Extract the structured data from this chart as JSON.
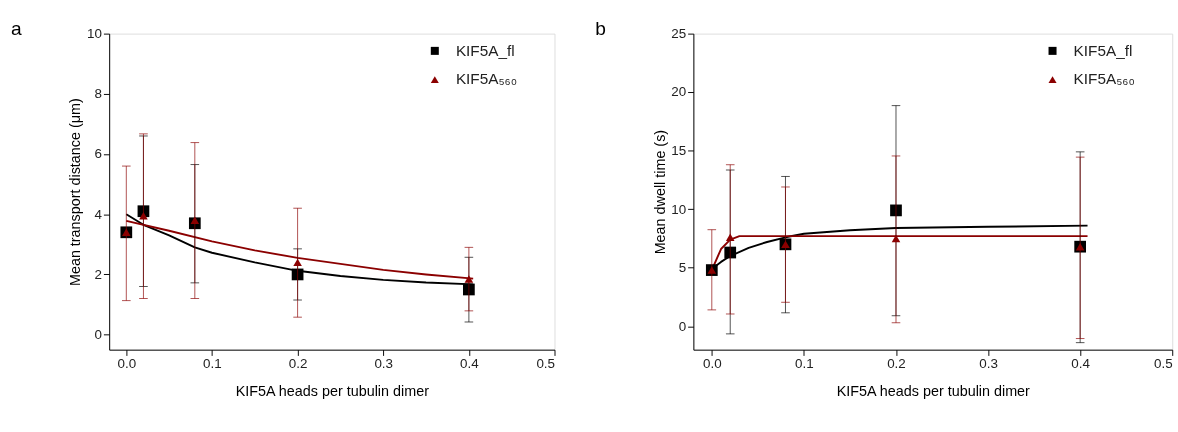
{
  "chart_data": [
    {
      "type": "scatter",
      "title": "a",
      "xlabel": "KIF5A heads per tubulin dimer",
      "ylabel": "Mean transport distance (μm)",
      "xlim": [
        -0.02,
        0.5
      ],
      "ylim": [
        -0.5,
        10
      ],
      "xticks": [
        {
          "value": 0,
          "label": "0.0"
        },
        0.1,
        0.2,
        0.3,
        0.4,
        0.5
      ],
      "yticks": [
        0,
        2,
        4,
        6,
        8,
        10
      ],
      "legend": "top right",
      "series": [
        {
          "type": "line",
          "color": "#000000",
          "marker": "none",
          "line_style": "solid",
          "x": [
            0,
            0.02,
            0.05,
            0.08,
            0.1,
            0.15,
            0.2,
            0.25,
            0.3,
            0.35,
            0.405
          ],
          "values": [
            4.0,
            3.65,
            3.3,
            2.9,
            2.72,
            2.4,
            2.12,
            1.95,
            1.82,
            1.73,
            1.67
          ]
        },
        {
          "type": "line",
          "color": "#8b0000",
          "marker": "none",
          "line_style": "solid",
          "x": [
            0,
            0.05,
            0.1,
            0.15,
            0.2,
            0.25,
            0.3,
            0.35,
            0.405
          ],
          "values": [
            3.78,
            3.45,
            3.1,
            2.8,
            2.55,
            2.35,
            2.15,
            2.0,
            1.86
          ]
        },
        {
          "name": "KIF5A_fl",
          "color": "#000000",
          "marker": "square",
          "x": [
            0,
            0.02,
            0.08,
            0.2,
            0.4
          ],
          "values": [
            3.4,
            4.1,
            3.7,
            2.0,
            1.5
          ],
          "errors": [
            null,
            [
              1.6,
              6.6
            ],
            [
              1.72,
              5.65
            ],
            [
              1.15,
              2.85
            ],
            [
              0.42,
              2.57
            ]
          ]
        },
        {
          "name": "KIF5A₅₆₀",
          "color": "#8b0000",
          "marker": "triangle",
          "x": [
            0,
            0.02,
            0.08,
            0.2,
            0.4
          ],
          "values": [
            3.4,
            3.95,
            3.8,
            2.4,
            1.85
          ],
          "errors": [
            [
              1.13,
              5.6
            ],
            [
              1.2,
              6.67
            ],
            [
              1.2,
              6.38
            ],
            [
              0.58,
              4.2
            ],
            [
              0.79,
              2.9
            ]
          ]
        }
      ]
    },
    {
      "type": "scatter",
      "title": "b",
      "xlabel": "KIF5A heads per tubulin dimer",
      "ylabel": "Mean dwell time (s)",
      "xlim": [
        -0.02,
        0.5
      ],
      "ylim": [
        -2,
        25
      ],
      "xticks": [
        {
          "value": 0,
          "label": "0.0"
        },
        0.1,
        0.2,
        0.3,
        0.4,
        0.5
      ],
      "yticks": [
        0,
        5,
        10,
        15,
        20,
        25
      ],
      "legend": "top right",
      "series": [
        {
          "type": "line",
          "color": "#000000",
          "marker": "none",
          "line_style": "solid",
          "x": [
            0,
            0.01,
            0.02,
            0.04,
            0.06,
            0.08,
            0.1,
            0.15,
            0.2,
            0.3,
            0.408
          ],
          "values": [
            4.9,
            5.5,
            6.0,
            6.7,
            7.2,
            7.6,
            7.9,
            8.2,
            8.4,
            8.5,
            8.6
          ]
        },
        {
          "type": "line",
          "color": "#8b0000",
          "marker": "none",
          "line_style": "solid",
          "x": [
            0,
            0.01,
            0.02,
            0.03,
            0.05,
            0.408
          ],
          "values": [
            4.8,
            6.6,
            7.4,
            7.7,
            7.7,
            7.7
          ]
        },
        {
          "name": "KIF5A_fl",
          "color": "#000000",
          "marker": "square",
          "x": [
            0,
            0.02,
            0.08,
            0.2,
            0.4
          ],
          "values": [
            4.8,
            6.3,
            7.0,
            9.9,
            6.8
          ],
          "errors": [
            null,
            [
              -0.65,
              13.35
            ],
            [
              1.15,
              12.8
            ],
            [
              0.9,
              18.85
            ],
            [
              -1.4,
              14.9
            ]
          ]
        },
        {
          "name": "KIF5A₅₆₀",
          "color": "#8b0000",
          "marker": "triangle",
          "x": [
            0,
            0.02,
            0.08,
            0.2,
            0.4
          ],
          "values": [
            4.8,
            7.6,
            7.0,
            7.5,
            6.8
          ],
          "errors": [
            [
              1.4,
              8.25
            ],
            [
              1.05,
              13.8
            ],
            [
              2.05,
              11.9
            ],
            [
              0.3,
              14.55
            ],
            [
              -1.05,
              14.45
            ]
          ]
        }
      ]
    }
  ]
}
